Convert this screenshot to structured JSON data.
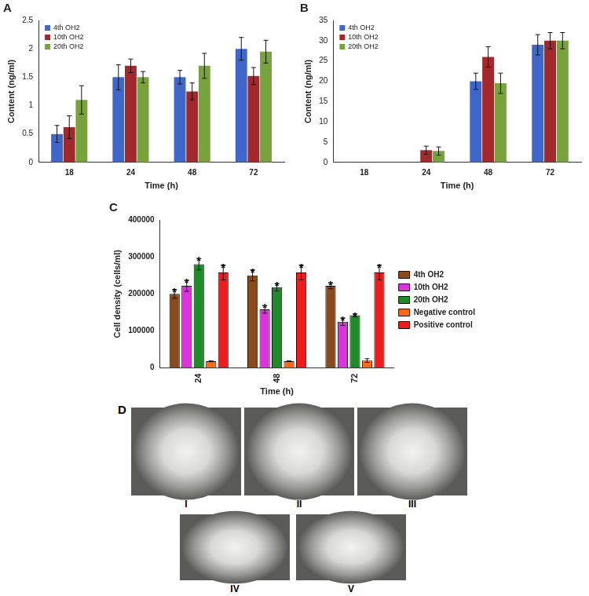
{
  "chart_data": [
    {
      "type": "bar",
      "title": "A",
      "x_label": "Time (h)",
      "y_label": "Content (ng/ml)",
      "categories": [
        "18",
        "24",
        "48",
        "72"
      ],
      "series": [
        {
          "name": "4th OH2",
          "color": "#3f67c9",
          "values": [
            0.5,
            1.5,
            1.5,
            2.0
          ],
          "errors": [
            0.15,
            0.22,
            0.12,
            0.2
          ]
        },
        {
          "name": "10th OH2",
          "color": "#a3282b",
          "values": [
            0.62,
            1.7,
            1.25,
            1.52
          ],
          "errors": [
            0.2,
            0.12,
            0.15,
            0.15
          ]
        },
        {
          "name": "20th OH2",
          "color": "#78a33c",
          "values": [
            1.1,
            1.5,
            1.7,
            1.95
          ],
          "errors": [
            0.25,
            0.1,
            0.22,
            0.2
          ]
        }
      ],
      "ylim": [
        0,
        2.5
      ],
      "yticks": [
        0,
        0.5,
        1,
        1.5,
        2,
        2.5
      ],
      "grid": false,
      "legend": "upper left"
    },
    {
      "type": "bar",
      "title": "B",
      "x_label": "Time (h)",
      "y_label": "Content (ng/ml)",
      "categories": [
        "18",
        "24",
        "48",
        "72"
      ],
      "series": [
        {
          "name": "4th OH2",
          "color": "#3f67c9",
          "values": [
            0,
            0,
            20,
            29
          ],
          "errors": [
            0,
            0,
            2,
            2.5
          ]
        },
        {
          "name": "10th OH2",
          "color": "#a3282b",
          "values": [
            0,
            3,
            26,
            30
          ],
          "errors": [
            0,
            1,
            2.5,
            2
          ]
        },
        {
          "name": "20th OH2",
          "color": "#78a33c",
          "values": [
            0,
            2.8,
            19.5,
            30
          ],
          "errors": [
            0,
            1,
            2.5,
            2
          ]
        }
      ],
      "ylim": [
        0,
        35
      ],
      "yticks": [
        0,
        5,
        10,
        15,
        20,
        25,
        30,
        35
      ],
      "grid": false,
      "legend": "upper left"
    },
    {
      "type": "bar",
      "title": "C",
      "x_label": "Time (h)",
      "y_label": "Cell density (cells/ml)",
      "categories": [
        "24",
        "48",
        "72"
      ],
      "series": [
        {
          "name": "4th OH2",
          "color": "#8b4a1c",
          "values": [
            200000,
            250000,
            222000
          ],
          "errors": [
            12000,
            15000,
            8000
          ],
          "annotations": [
            "*",
            "*",
            "*"
          ]
        },
        {
          "name": "10th OH2",
          "color": "#dd33dd",
          "values": [
            222000,
            158000,
            125000
          ],
          "errors": [
            15000,
            10000,
            10000
          ],
          "annotations": [
            "*",
            "*",
            "*"
          ]
        },
        {
          "name": "20th OH2",
          "color": "#1f8a2a",
          "values": [
            280000,
            218000,
            142000
          ],
          "errors": [
            15000,
            10000,
            4000
          ],
          "annotations": [
            "*",
            "*",
            "*"
          ]
        },
        {
          "name": "Negative control",
          "color": "#ff6a13",
          "values": [
            18000,
            18000,
            20000
          ],
          "errors": [
            1000,
            1000,
            5000
          ]
        },
        {
          "name": "Positive control",
          "color": "#ee1c1c",
          "values": [
            258000,
            258000,
            258000
          ],
          "errors": [
            20000,
            20000,
            20000
          ],
          "annotations": [
            "*",
            "*",
            "*"
          ]
        }
      ],
      "ylim": [
        0,
        400000
      ],
      "yticks": [
        0,
        100000,
        200000,
        300000,
        400000
      ],
      "grid": false,
      "legend": "right"
    }
  ],
  "images": {
    "title": "D",
    "captions": [
      "I",
      "II",
      "III",
      "IV",
      "V"
    ]
  }
}
